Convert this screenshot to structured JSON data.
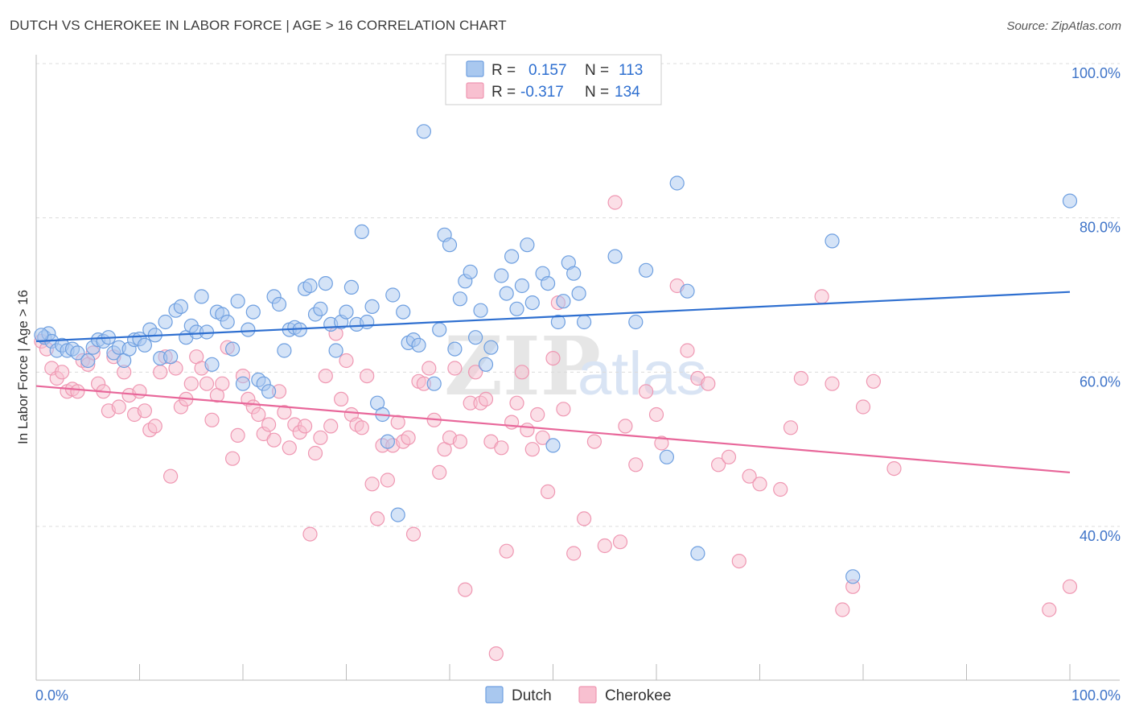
{
  "title": "DUTCH VS CHEROKEE IN LABOR FORCE | AGE > 16 CORRELATION CHART",
  "source": "Source: ZipAtlas.com",
  "watermark": {
    "zip": "ZIP",
    "atlas": "atlas"
  },
  "legend": {
    "r_label": "R =",
    "n_label": "N =",
    "rows": [
      {
        "r": "0.157",
        "n": "113",
        "fill": "#a9c8ef",
        "stroke": "#6e9fe0"
      },
      {
        "r": "-0.317",
        "n": "134",
        "fill": "#f8c0d0",
        "stroke": "#ef97b2"
      }
    ]
  },
  "chart_data": {
    "type": "scatter",
    "xlabel": "",
    "ylabel": "In Labor Force | Age > 16",
    "xlim": [
      0,
      100
    ],
    "ylim": [
      20,
      100
    ],
    "x_tick_labels": [
      "0.0%",
      "100.0%"
    ],
    "y_ticks": [
      40,
      60,
      80,
      100
    ],
    "y_tick_labels": [
      "40.0%",
      "60.0%",
      "80.0%",
      "100.0%"
    ],
    "grid": true,
    "legend_position": "top-center",
    "series": [
      {
        "name": "Dutch",
        "color": "#6e9fe0",
        "fill": "#a9c8ef",
        "trend": {
          "x": [
            0,
            100
          ],
          "y": [
            64.0,
            70.4
          ],
          "color": "#2e6fd0"
        },
        "points": [
          [
            0.8,
            64.5
          ],
          [
            1.2,
            65.0
          ],
          [
            1.5,
            64.0
          ],
          [
            2.0,
            62.8
          ],
          [
            2.5,
            63.5
          ],
          [
            3.0,
            62.8
          ],
          [
            3.5,
            63.0
          ],
          [
            4.0,
            62.5
          ],
          [
            5.0,
            61.5
          ],
          [
            5.5,
            63.2
          ],
          [
            6.0,
            64.2
          ],
          [
            6.5,
            64.0
          ],
          [
            7.0,
            64.5
          ],
          [
            7.5,
            62.5
          ],
          [
            8.0,
            63.2
          ],
          [
            8.5,
            61.5
          ],
          [
            9.0,
            63.0
          ],
          [
            9.5,
            64.2
          ],
          [
            10.0,
            64.3
          ],
          [
            10.5,
            63.5
          ],
          [
            11.0,
            65.5
          ],
          [
            11.5,
            64.8
          ],
          [
            12.0,
            61.8
          ],
          [
            12.5,
            66.5
          ],
          [
            13.0,
            62.0
          ],
          [
            13.5,
            68.0
          ],
          [
            14.0,
            68.5
          ],
          [
            14.5,
            64.5
          ],
          [
            15.0,
            66.0
          ],
          [
            15.5,
            65.2
          ],
          [
            16.0,
            69.8
          ],
          [
            16.5,
            65.2
          ],
          [
            17.0,
            61.0
          ],
          [
            17.5,
            67.8
          ],
          [
            18.0,
            67.5
          ],
          [
            18.5,
            66.5
          ],
          [
            19.0,
            63.0
          ],
          [
            19.5,
            69.2
          ],
          [
            20.0,
            58.5
          ],
          [
            20.5,
            65.5
          ],
          [
            21.0,
            67.8
          ],
          [
            21.5,
            59.0
          ],
          [
            22.0,
            58.5
          ],
          [
            22.5,
            57.5
          ],
          [
            23.0,
            69.8
          ],
          [
            23.5,
            68.8
          ],
          [
            24.0,
            62.8
          ],
          [
            24.5,
            65.5
          ],
          [
            25.0,
            65.8
          ],
          [
            25.5,
            65.5
          ],
          [
            26.0,
            70.8
          ],
          [
            26.5,
            71.2
          ],
          [
            27.0,
            67.5
          ],
          [
            27.5,
            68.2
          ],
          [
            28.0,
            71.5
          ],
          [
            28.5,
            66.2
          ],
          [
            29.0,
            62.8
          ],
          [
            29.5,
            66.5
          ],
          [
            30.0,
            67.8
          ],
          [
            30.5,
            71.0
          ],
          [
            31.0,
            66.2
          ],
          [
            31.5,
            78.2
          ],
          [
            32.0,
            66.5
          ],
          [
            32.5,
            68.5
          ],
          [
            33.0,
            56.0
          ],
          [
            33.5,
            54.5
          ],
          [
            34.0,
            51.0
          ],
          [
            34.5,
            70.0
          ],
          [
            35.0,
            41.5
          ],
          [
            35.5,
            67.8
          ],
          [
            36.0,
            63.8
          ],
          [
            36.5,
            64.2
          ],
          [
            37.0,
            63.5
          ],
          [
            37.5,
            91.2
          ],
          [
            38.5,
            58.5
          ],
          [
            39.0,
            65.5
          ],
          [
            39.5,
            77.8
          ],
          [
            40.0,
            76.5
          ],
          [
            40.5,
            63.0
          ],
          [
            41.0,
            69.5
          ],
          [
            41.5,
            71.8
          ],
          [
            42.0,
            73.0
          ],
          [
            42.5,
            64.5
          ],
          [
            43.0,
            68.0
          ],
          [
            43.5,
            61.0
          ],
          [
            44.0,
            63.2
          ],
          [
            45.0,
            72.5
          ],
          [
            45.5,
            70.2
          ],
          [
            46.0,
            75.0
          ],
          [
            46.5,
            68.2
          ],
          [
            47.0,
            71.2
          ],
          [
            47.5,
            76.5
          ],
          [
            48.0,
            69.0
          ],
          [
            49.0,
            72.8
          ],
          [
            49.5,
            71.5
          ],
          [
            50.0,
            50.5
          ],
          [
            50.5,
            66.5
          ],
          [
            51.0,
            69.2
          ],
          [
            51.5,
            74.2
          ],
          [
            52.0,
            72.8
          ],
          [
            52.5,
            70.2
          ],
          [
            53.0,
            66.5
          ],
          [
            56.0,
            75.0
          ],
          [
            58.0,
            66.5
          ],
          [
            59.0,
            73.2
          ],
          [
            61.0,
            49.0
          ],
          [
            62.0,
            84.5
          ],
          [
            63.0,
            70.5
          ],
          [
            64.0,
            36.5
          ],
          [
            77.0,
            77.0
          ],
          [
            79.0,
            33.5
          ],
          [
            100.0,
            82.2
          ],
          [
            0.5,
            64.8
          ]
        ]
      },
      {
        "name": "Cherokee",
        "color": "#ef97b2",
        "fill": "#f8c0d0",
        "trend": {
          "x": [
            0,
            100
          ],
          "y": [
            58.2,
            47.0
          ],
          "color": "#e8679a"
        },
        "points": [
          [
            0.5,
            64.0
          ],
          [
            1.0,
            63.0
          ],
          [
            1.5,
            60.5
          ],
          [
            2.0,
            59.2
          ],
          [
            2.5,
            60.0
          ],
          [
            3.0,
            57.5
          ],
          [
            3.5,
            57.8
          ],
          [
            4.0,
            57.5
          ],
          [
            4.5,
            61.5
          ],
          [
            5.0,
            61.0
          ],
          [
            5.5,
            62.5
          ],
          [
            6.0,
            58.5
          ],
          [
            6.5,
            57.5
          ],
          [
            7.0,
            55.0
          ],
          [
            7.5,
            62.0
          ],
          [
            8.0,
            55.5
          ],
          [
            8.5,
            60.0
          ],
          [
            9.0,
            57.0
          ],
          [
            9.5,
            54.5
          ],
          [
            10.0,
            57.5
          ],
          [
            10.5,
            55.0
          ],
          [
            11.0,
            52.5
          ],
          [
            11.5,
            53.0
          ],
          [
            12.0,
            60.0
          ],
          [
            12.5,
            62.0
          ],
          [
            13.0,
            46.5
          ],
          [
            13.5,
            60.5
          ],
          [
            14.0,
            55.5
          ],
          [
            14.5,
            56.5
          ],
          [
            15.0,
            58.5
          ],
          [
            15.5,
            62.0
          ],
          [
            16.0,
            60.5
          ],
          [
            16.5,
            58.5
          ],
          [
            17.0,
            53.8
          ],
          [
            17.5,
            57.0
          ],
          [
            18.0,
            58.5
          ],
          [
            18.5,
            63.2
          ],
          [
            19.0,
            48.8
          ],
          [
            19.5,
            51.8
          ],
          [
            20.0,
            59.5
          ],
          [
            20.5,
            56.5
          ],
          [
            21.0,
            55.5
          ],
          [
            21.5,
            54.5
          ],
          [
            22.0,
            52.0
          ],
          [
            22.5,
            53.2
          ],
          [
            23.0,
            51.2
          ],
          [
            23.5,
            57.5
          ],
          [
            24.0,
            54.8
          ],
          [
            24.5,
            50.2
          ],
          [
            25.0,
            53.2
          ],
          [
            25.5,
            52.2
          ],
          [
            26.0,
            53.0
          ],
          [
            26.5,
            39.0
          ],
          [
            27.0,
            49.5
          ],
          [
            27.5,
            51.5
          ],
          [
            28.0,
            59.5
          ],
          [
            28.5,
            53.0
          ],
          [
            29.0,
            65.0
          ],
          [
            29.5,
            56.5
          ],
          [
            30.0,
            61.5
          ],
          [
            30.5,
            54.5
          ],
          [
            31.0,
            53.2
          ],
          [
            31.5,
            52.8
          ],
          [
            32.0,
            59.5
          ],
          [
            32.5,
            45.5
          ],
          [
            33.0,
            41.0
          ],
          [
            33.5,
            50.5
          ],
          [
            34.0,
            46.0
          ],
          [
            34.5,
            50.5
          ],
          [
            35.0,
            53.5
          ],
          [
            35.5,
            51.0
          ],
          [
            36.0,
            51.5
          ],
          [
            36.5,
            39.0
          ],
          [
            37.0,
            58.8
          ],
          [
            37.5,
            58.5
          ],
          [
            38.0,
            60.5
          ],
          [
            38.5,
            53.8
          ],
          [
            39.0,
            47.0
          ],
          [
            39.5,
            50.0
          ],
          [
            40.0,
            51.5
          ],
          [
            40.5,
            60.5
          ],
          [
            41.0,
            51.0
          ],
          [
            41.5,
            31.8
          ],
          [
            42.0,
            56.0
          ],
          [
            42.5,
            60.0
          ],
          [
            43.0,
            56.0
          ],
          [
            43.5,
            56.5
          ],
          [
            44.0,
            51.0
          ],
          [
            44.5,
            23.5
          ],
          [
            45.0,
            50.2
          ],
          [
            45.5,
            36.8
          ],
          [
            46.0,
            53.5
          ],
          [
            46.5,
            56.0
          ],
          [
            47.0,
            60.0
          ],
          [
            47.5,
            52.5
          ],
          [
            48.0,
            50.0
          ],
          [
            48.5,
            54.5
          ],
          [
            49.0,
            51.5
          ],
          [
            49.5,
            44.5
          ],
          [
            50.0,
            61.8
          ],
          [
            50.5,
            69.0
          ],
          [
            51.0,
            55.2
          ],
          [
            52.0,
            36.5
          ],
          [
            53.0,
            41.0
          ],
          [
            54.0,
            51.0
          ],
          [
            55.0,
            37.5
          ],
          [
            56.0,
            82.0
          ],
          [
            56.5,
            38.0
          ],
          [
            57.0,
            53.0
          ],
          [
            58.0,
            48.0
          ],
          [
            59.0,
            57.5
          ],
          [
            60.0,
            54.5
          ],
          [
            60.5,
            50.8
          ],
          [
            62.0,
            71.2
          ],
          [
            63.0,
            62.8
          ],
          [
            64.0,
            59.2
          ],
          [
            65.0,
            58.5
          ],
          [
            66.0,
            48.0
          ],
          [
            67.0,
            49.0
          ],
          [
            68.0,
            35.5
          ],
          [
            69.0,
            46.5
          ],
          [
            70.0,
            45.5
          ],
          [
            72.0,
            44.8
          ],
          [
            73.0,
            52.8
          ],
          [
            74.0,
            59.2
          ],
          [
            76.0,
            69.8
          ],
          [
            77.0,
            58.5
          ],
          [
            78.0,
            29.2
          ],
          [
            79.0,
            32.2
          ],
          [
            80.0,
            55.5
          ],
          [
            81.0,
            58.8
          ],
          [
            83.0,
            47.5
          ],
          [
            98.0,
            29.2
          ],
          [
            100.0,
            32.2
          ]
        ]
      }
    ]
  },
  "bottom_legend": [
    {
      "label": "Dutch",
      "fill": "#a9c8ef",
      "stroke": "#6e9fe0"
    },
    {
      "label": "Cherokee",
      "fill": "#f8c0d0",
      "stroke": "#ef97b2"
    }
  ]
}
